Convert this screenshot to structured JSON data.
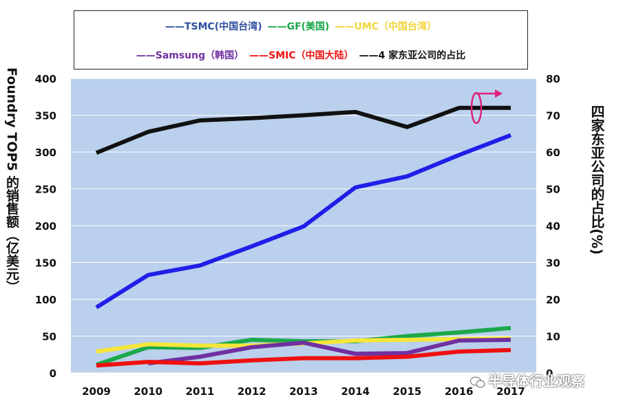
{
  "chart_data": {
    "type": "line",
    "categories": [
      "2009",
      "2010",
      "2011",
      "2012",
      "2013",
      "2014",
      "2015",
      "2016",
      "2017"
    ],
    "ylabel": "Foundry TOP5 的销售额（亿美元）",
    "y2label": "四家东亚公司的占比(%)",
    "ylim": [
      0,
      400
    ],
    "yticks": [
      "0",
      "50",
      "100",
      "150",
      "200",
      "250",
      "300",
      "350",
      "400"
    ],
    "y2lim": [
      0,
      80
    ],
    "y2ticks": [
      "0",
      "10",
      "20",
      "30",
      "40",
      "50",
      "60",
      "70",
      "80"
    ],
    "grid": "horizontal",
    "legend_position": "top",
    "series": [
      {
        "name": "——TSMC(中国台湾)",
        "color": "#1f1fe8",
        "axis": "left",
        "values": [
          89,
          133,
          146,
          172,
          199,
          252,
          267,
          296,
          323
        ]
      },
      {
        "name": "——GF(美国)",
        "color": "#1aa84a",
        "axis": "left",
        "values": [
          11,
          35,
          34,
          45,
          43,
          43,
          50,
          55,
          61
        ]
      },
      {
        "name": "——UMC（中国台湾）",
        "color": "#f5e63a",
        "axis": "left",
        "values": [
          29,
          39,
          37,
          37,
          40,
          44,
          45,
          46,
          47
        ]
      },
      {
        "name": "——Samsung（韩国）",
        "color": "#7030a0",
        "axis": "left",
        "values": [
          null,
          13,
          22,
          35,
          41,
          26,
          27,
          44,
          45
        ]
      },
      {
        "name": "——SMIC（中国大陆）",
        "color": "#ee1111",
        "axis": "left",
        "values": [
          10,
          15,
          13,
          17,
          20,
          20,
          22,
          29,
          31
        ]
      },
      {
        "name": "——4 家东亚公司的占比",
        "color": "#111111",
        "axis": "right",
        "values": [
          59.8,
          65.5,
          68.6,
          69.2,
          70.0,
          70.9,
          66.8,
          72.0,
          72.0
        ]
      }
    ]
  },
  "legend": {
    "tsmc": "——TSMC(中国台湾)",
    "gf": "——GF(美国)",
    "umc": "——UMC（中国台湾）",
    "samsung": "——Samsung（韩国）",
    "smic": "——SMIC（中国大陆）",
    "ratio": "——4 家东亚公司的占比"
  },
  "colors": {
    "plot_bg": "#bad0ec",
    "tsmc_legend": "#2e4f9e",
    "gf_legend": "#1aa84a",
    "umc_legend": "#f2d33a",
    "samsung_legend": "#7030a0",
    "smic_legend": "#ee1111",
    "ratio_legend": "#111111",
    "arrow_marker": "#e0207a"
  },
  "watermark": "半导体行业观察"
}
